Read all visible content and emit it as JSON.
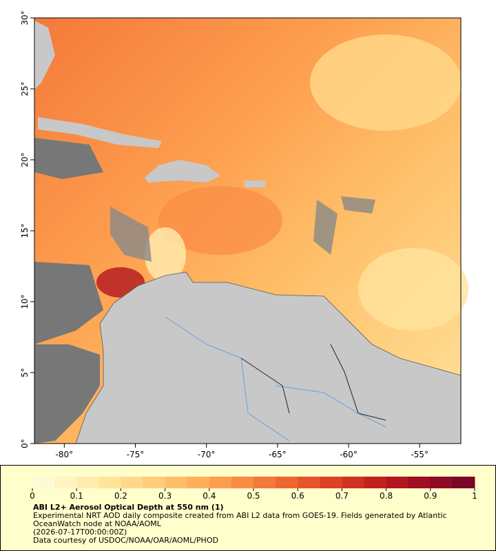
{
  "map": {
    "xlim": [
      -82.1,
      -52.1
    ],
    "ylim": [
      0,
      30
    ],
    "xticks": [
      {
        "value": -80,
        "label": "-80°"
      },
      {
        "value": -75,
        "label": "-75°"
      },
      {
        "value": -70,
        "label": "-70°"
      },
      {
        "value": -65,
        "label": "-65°"
      },
      {
        "value": -60,
        "label": "-60°"
      },
      {
        "value": -55,
        "label": "-55°"
      }
    ],
    "yticks": [
      {
        "value": 0,
        "label": "0°"
      },
      {
        "value": 5,
        "label": "5°"
      },
      {
        "value": 10,
        "label": "10°"
      },
      {
        "value": 15,
        "label": "15°"
      },
      {
        "value": 20,
        "label": "20°"
      },
      {
        "value": 25,
        "label": "25°"
      },
      {
        "value": 30,
        "label": "30°"
      }
    ]
  },
  "colorbar": {
    "clim": [
      0,
      1
    ],
    "ticks": [
      0,
      0.1,
      0.2,
      0.3,
      0.4,
      0.5,
      0.6,
      0.7,
      0.8,
      0.9,
      1
    ],
    "colors": [
      "#fffad6",
      "#fff4c2",
      "#ffedb0",
      "#ffe49c",
      "#ffd98a",
      "#ffcc78",
      "#ffbe68",
      "#ffae5a",
      "#fd9d4e",
      "#f98b44",
      "#f4793a",
      "#ee6632",
      "#e6542b",
      "#dc4226",
      "#d03122",
      "#c2221f",
      "#b2161f",
      "#a00e22",
      "#8d0925",
      "#7a0526"
    ]
  },
  "caption": {
    "title": "ABI L2+ Aerosol Optical Depth at 550 nm (1)",
    "description": "Experimental NRT AOD daily composite created from ABI L2 data from GOES-19. Fields generated by Atlantic OceanWatch node at NOAA/AOML",
    "time": "(2026-07-17T00:00:00Z)",
    "credit": "Data courtesy of USDOC/NOAA/OAR/AOML/PHOD"
  }
}
